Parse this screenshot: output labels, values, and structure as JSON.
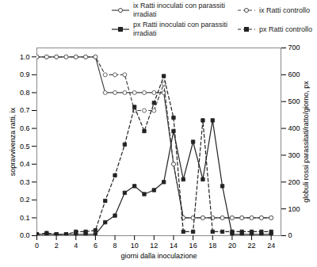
{
  "chart_data": {
    "type": "line",
    "xlabel": "giorni dalla inoculazione",
    "ylabel": "sopravvivenza ratti, ix",
    "y2label": "globuli rossi parassitati/ratto/giorno, px",
    "x": [
      0,
      1,
      2,
      3,
      4,
      5,
      6,
      7,
      8,
      9,
      10,
      11,
      12,
      13,
      14,
      15,
      16,
      17,
      18,
      19,
      20,
      21,
      22,
      23,
      24
    ],
    "xlim": [
      0,
      25
    ],
    "xticks": [
      0,
      2,
      4,
      6,
      8,
      10,
      12,
      14,
      16,
      18,
      20,
      22,
      24
    ],
    "ylim": [
      0,
      1.05
    ],
    "yticks": [
      {
        "value": 0,
        "label": "0.0"
      },
      0.1,
      0.2,
      0.3,
      0.4,
      0.5,
      0.6,
      0.7,
      0.8,
      0.9,
      {
        "value": 1.0,
        "label": "1.0"
      }
    ],
    "y2lim": [
      0,
      700
    ],
    "y2ticks": [
      0,
      100,
      200,
      300,
      400,
      500,
      600,
      700
    ],
    "legend": "upper right",
    "series": [
      {
        "name": "ix Ratti inoculati con parassiti\nirradiati",
        "color": "#444444",
        "marker": "circle",
        "line_style": "solid",
        "values": [
          1.0,
          1.0,
          1.0,
          1.0,
          1.0,
          1.0,
          1.0,
          0.8,
          0.8,
          0.8,
          0.8,
          0.8,
          0.8,
          0.8,
          0.4,
          0.1,
          0.1,
          0.1,
          0.1,
          0.1,
          0.1,
          0.1,
          0.1,
          0.1,
          0.1
        ]
      },
      {
        "name": "ix Ratti controllo",
        "color": "#444444",
        "marker": "circle",
        "line_style": "dashed",
        "values": [
          1.0,
          1.0,
          1.0,
          1.0,
          1.0,
          1.0,
          1.0,
          0.9,
          0.9,
          0.9,
          0.7,
          0.7,
          0.7,
          0.85,
          0.4,
          0.1,
          0.1,
          0.1,
          0.1,
          0.1,
          0.1,
          0.1,
          0.1,
          0.1,
          0.1
        ]
      },
      {
        "name": "px Ratti inoculati con parassiti\nirradiati",
        "color": "#222222",
        "marker": "square",
        "line_style": "solid",
        "axis": "y2",
        "values": [
          5,
          5,
          5,
          5,
          5,
          5,
          5,
          50,
          75,
          160,
          185,
          155,
          170,
          200,
          390,
          210,
          350,
          210,
          430,
          185,
          5,
          5,
          5,
          5,
          5
        ]
      },
      {
        "name": "px Ratti controllo",
        "color": "#222222",
        "marker": "square",
        "line_style": "dashed",
        "axis": "y2",
        "values": [
          5,
          10,
          5,
          5,
          15,
          15,
          20,
          130,
          225,
          340,
          480,
          390,
          495,
          595,
          440,
          15,
          15,
          430,
          15,
          15,
          15,
          15,
          15,
          15,
          15
        ]
      }
    ]
  }
}
